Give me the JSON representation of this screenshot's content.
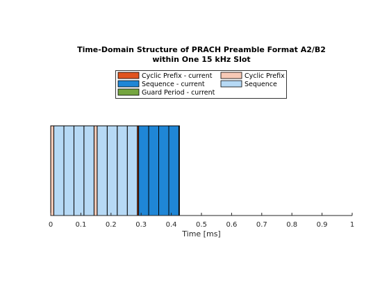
{
  "chart_data": {
    "type": "bar",
    "orientation": "horizontal-stacked-timeline",
    "title_lines": [
      "Time-Domain Structure of PRACH Preamble Format A2/B2",
      "within One 15 kHz Slot"
    ],
    "xlabel": "Time  [ms]",
    "ylabel": "",
    "xlim": [
      0,
      1
    ],
    "x_ticks": [
      "0",
      "0.1",
      "0.2",
      "0.3",
      "0.4",
      "0.5",
      "0.6",
      "0.7",
      "0.8",
      "0.9",
      "1"
    ],
    "x_tick_values": [
      0,
      0.1,
      0.2,
      0.3,
      0.4,
      0.5,
      0.6,
      0.7,
      0.8,
      0.9,
      1
    ],
    "grid": false,
    "legend_position": "top",
    "legend": [
      {
        "label": "Cyclic Prefix - current",
        "color": "#e0531e"
      },
      {
        "label": "Cyclic Prefix",
        "color": "#f7c9b6"
      },
      {
        "label": "Sequence - current",
        "color": "#1f86d6"
      },
      {
        "label": "Sequence",
        "color": "#b6d9f5"
      },
      {
        "label": "Guard Period - current",
        "color": "#75a540"
      }
    ],
    "colors": {
      "cp": "#f7c9b6",
      "seq": "#b6d9f5",
      "seq_current": "#1f86d6",
      "cp_current": "#e0531e",
      "gp_current": "#75a540"
    },
    "segments": [
      {
        "kind": "cp",
        "start": 0.0,
        "end": 0.0104
      },
      {
        "kind": "seq",
        "start": 0.0104,
        "end": 0.0438
      },
      {
        "kind": "seq",
        "start": 0.0438,
        "end": 0.0771
      },
      {
        "kind": "seq",
        "start": 0.0771,
        "end": 0.1104
      },
      {
        "kind": "seq",
        "start": 0.1104,
        "end": 0.1438
      },
      {
        "kind": "cp",
        "start": 0.1438,
        "end": 0.1542
      },
      {
        "kind": "seq",
        "start": 0.1542,
        "end": 0.1875
      },
      {
        "kind": "seq",
        "start": 0.1875,
        "end": 0.2208
      },
      {
        "kind": "seq",
        "start": 0.2208,
        "end": 0.2542
      },
      {
        "kind": "seq",
        "start": 0.2542,
        "end": 0.2875
      },
      {
        "kind": "cp_current",
        "start": 0.2875,
        "end": 0.2917
      },
      {
        "kind": "seq_current",
        "start": 0.2917,
        "end": 0.325
      },
      {
        "kind": "seq_current",
        "start": 0.325,
        "end": 0.3583
      },
      {
        "kind": "seq_current",
        "start": 0.3583,
        "end": 0.3917
      },
      {
        "kind": "seq_current",
        "start": 0.3917,
        "end": 0.425
      },
      {
        "kind": "gp_current",
        "start": 0.425,
        "end": 0.4271
      }
    ]
  }
}
